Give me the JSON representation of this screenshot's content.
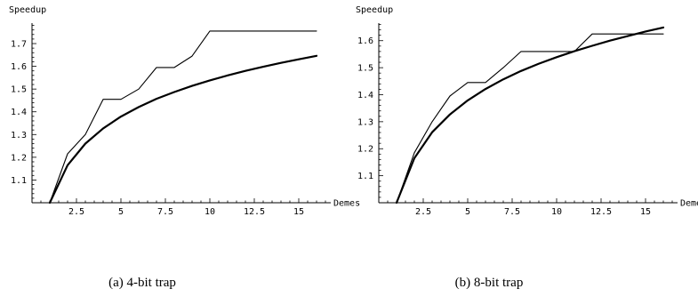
{
  "chart_data": [
    {
      "type": "line",
      "caption": "(a) 4-bit trap",
      "ylabel": "Speedup",
      "xlabel": "Demes",
      "xlim": [
        0,
        16.8
      ],
      "ylim": [
        1.0,
        1.79
      ],
      "xticks": [
        2.5,
        5,
        7.5,
        10,
        12.5,
        15
      ],
      "xtick_labels": [
        "2.5",
        "5",
        "7.5",
        "10",
        "12.5",
        "15"
      ],
      "yticks": [
        1.1,
        1.2,
        1.3,
        1.4,
        1.5,
        1.6,
        1.7
      ],
      "ytick_labels": [
        "1.1",
        "1.2",
        "1.3",
        "1.4",
        "1.5",
        "1.6",
        "1.7"
      ],
      "series": [
        {
          "style": "thin",
          "x": [
            1,
            2,
            3,
            4,
            5,
            6,
            7,
            8,
            9,
            10,
            11,
            12,
            13,
            14,
            15,
            16
          ],
          "y": [
            1.0,
            1.215,
            1.3,
            1.455,
            1.455,
            1.5,
            1.595,
            1.595,
            1.645,
            1.755,
            1.755,
            1.755,
            1.755,
            1.755,
            1.755,
            1.755
          ]
        },
        {
          "style": "thick",
          "x": [
            1,
            2,
            3,
            4,
            5,
            6,
            7,
            8,
            9,
            10,
            11,
            12,
            13,
            14,
            15,
            16
          ],
          "y": [
            1.0,
            1.165,
            1.26,
            1.327,
            1.379,
            1.421,
            1.457,
            1.487,
            1.514,
            1.538,
            1.56,
            1.58,
            1.598,
            1.615,
            1.631,
            1.646
          ]
        }
      ]
    },
    {
      "type": "line",
      "caption": "(b) 8-bit trap",
      "ylabel": "Speedup",
      "xlabel": "Demes",
      "xlim": [
        0,
        16.8
      ],
      "ylim": [
        1.0,
        1.665
      ],
      "xticks": [
        2.5,
        5,
        7.5,
        10,
        12.5,
        15
      ],
      "xtick_labels": [
        "2.5",
        "5",
        "7.5",
        "10",
        "12.5",
        "15"
      ],
      "yticks": [
        1.1,
        1.2,
        1.3,
        1.4,
        1.5,
        1.6
      ],
      "ytick_labels": [
        "1.1",
        "1.2",
        "1.3",
        "1.4",
        "1.5",
        "1.6"
      ],
      "series": [
        {
          "style": "thin",
          "x": [
            1,
            2,
            3,
            4,
            5,
            6,
            7,
            8,
            9,
            10,
            11,
            12,
            13,
            14,
            15,
            16
          ],
          "y": [
            1.0,
            1.185,
            1.3,
            1.395,
            1.445,
            1.445,
            1.5,
            1.56,
            1.56,
            1.56,
            1.56,
            1.625,
            1.625,
            1.625,
            1.625,
            1.625
          ]
        },
        {
          "style": "thick",
          "x": [
            1,
            2,
            3,
            4,
            5,
            6,
            7,
            8,
            9,
            10,
            11,
            12,
            13,
            14,
            15,
            16
          ],
          "y": [
            1.0,
            1.165,
            1.261,
            1.327,
            1.379,
            1.421,
            1.457,
            1.488,
            1.515,
            1.539,
            1.561,
            1.581,
            1.6,
            1.617,
            1.634,
            1.649
          ]
        }
      ]
    }
  ]
}
